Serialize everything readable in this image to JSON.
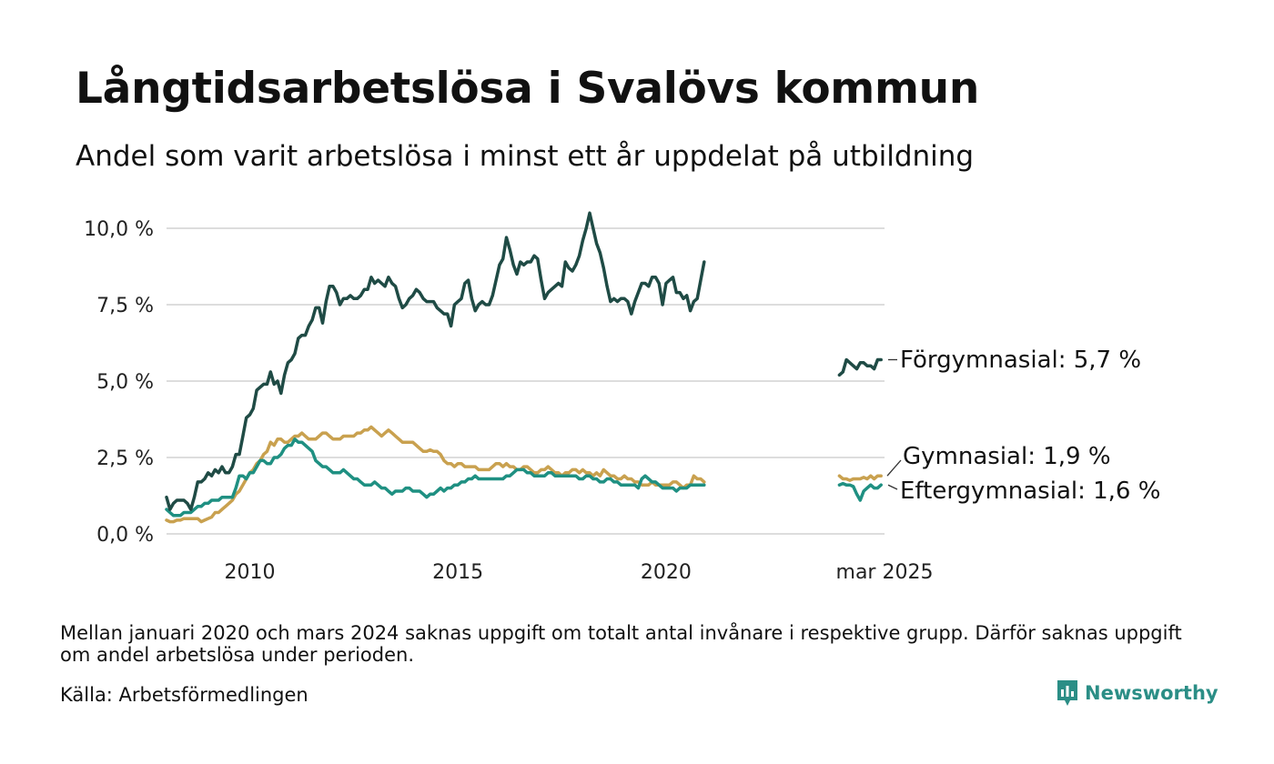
{
  "title": "Långtidsarbetslösa i Svalövs kommun",
  "subtitle": "Andel som varit arbetslösa i minst ett år uppdelat på utbildning",
  "footnote": "Mellan januari 2020 och mars 2024 saknas uppgift om totalt antal invånare i respektive grupp. Därför saknas uppgift om andel arbetslösa under perioden.",
  "source": "Källa: Arbetsförmedlingen",
  "brand": "Newsworthy",
  "colors": {
    "forgymnasial": "#1f4b45",
    "gymnasial": "#c9a14f",
    "eftergymnasial": "#1f9082",
    "grid": "#dddddd",
    "brand": "#2b8e86"
  },
  "chart_data": {
    "type": "line",
    "y_ticks": [
      "0,0 %",
      "2,5 %",
      "5,0 %",
      "7,5 %",
      "10,0 %"
    ],
    "y_tick_values": [
      0,
      2.5,
      5,
      7.5,
      10
    ],
    "ylim": [
      0,
      10.5
    ],
    "x_ticks": [
      "2010",
      "2015",
      "2020",
      "mar 2025"
    ],
    "grid": true,
    "series": [
      {
        "key": "forgymnasial",
        "name": "Förgymnasial",
        "end_label": "Förgymnasial: 5,7 %",
        "segment1": {
          "start": "2008-01",
          "step": "month",
          "values": [
            1.2,
            0.8,
            1.0,
            1.1,
            1.1,
            1.1,
            1.0,
            0.8,
            1.2,
            1.7,
            1.7,
            1.8,
            2.0,
            1.9,
            2.1,
            2.0,
            2.2,
            2.0,
            2.0,
            2.2,
            2.6,
            2.6,
            3.2,
            3.8,
            3.9,
            4.1,
            4.7,
            4.8,
            4.9,
            4.9,
            5.3,
            4.9,
            5.0,
            4.6,
            5.2,
            5.6,
            5.7,
            5.9,
            6.4,
            6.5,
            6.5,
            6.8,
            7.0,
            7.4,
            7.4,
            6.9,
            7.6,
            8.1,
            8.1,
            7.9,
            7.5,
            7.7,
            7.7,
            7.8,
            7.7,
            7.7,
            7.8,
            8.0,
            8.0,
            8.4,
            8.2,
            8.3,
            8.2,
            8.1,
            8.4,
            8.2,
            8.1,
            7.7,
            7.4,
            7.5,
            7.7,
            7.8,
            8.0,
            7.9,
            7.7,
            7.6,
            7.6,
            7.6,
            7.4,
            7.3,
            7.2,
            7.2,
            6.8,
            7.5,
            7.6,
            7.7,
            8.2,
            8.3,
            7.7,
            7.3,
            7.5,
            7.6,
            7.5,
            7.5,
            7.8,
            8.3,
            8.8,
            9.0,
            9.7,
            9.3,
            8.8,
            8.5,
            8.9,
            8.8,
            8.9,
            8.9,
            9.1,
            9.0,
            8.3,
            7.7,
            7.9,
            8.0,
            8.1,
            8.2,
            8.1,
            8.9,
            8.7,
            8.6,
            8.8,
            9.1,
            9.6,
            10.0,
            10.5,
            10.0,
            9.5,
            9.2,
            8.7,
            8.1,
            7.6,
            7.7,
            7.6,
            7.7,
            7.7,
            7.6,
            7.2,
            7.6,
            7.9,
            8.2,
            8.2,
            8.1,
            8.4,
            8.4,
            8.2,
            7.5,
            8.2,
            8.3,
            8.4,
            7.9,
            7.9,
            7.7,
            7.8,
            7.3,
            7.6,
            7.7,
            8.3,
            8.9
          ]
        },
        "segment2": {
          "start": "2024-03",
          "step": "month",
          "values": [
            5.2,
            5.3,
            5.7,
            5.6,
            5.5,
            5.4,
            5.6,
            5.6,
            5.5,
            5.5,
            5.4,
            5.7,
            5.7
          ]
        }
      },
      {
        "key": "gymnasial",
        "name": "Gymnasial",
        "end_label": "Gymnasial: 1,9 %",
        "segment1": {
          "start": "2008-01",
          "step": "month",
          "values": [
            0.45,
            0.4,
            0.4,
            0.45,
            0.45,
            0.5,
            0.5,
            0.5,
            0.5,
            0.5,
            0.4,
            0.45,
            0.5,
            0.55,
            0.7,
            0.7,
            0.8,
            0.9,
            1.0,
            1.1,
            1.3,
            1.4,
            1.6,
            1.8,
            2.0,
            2.1,
            2.3,
            2.4,
            2.6,
            2.7,
            3.0,
            2.9,
            3.1,
            3.1,
            3.0,
            3.0,
            3.1,
            3.2,
            3.2,
            3.3,
            3.2,
            3.1,
            3.1,
            3.1,
            3.2,
            3.3,
            3.3,
            3.2,
            3.1,
            3.1,
            3.1,
            3.2,
            3.2,
            3.2,
            3.2,
            3.3,
            3.3,
            3.4,
            3.4,
            3.5,
            3.4,
            3.3,
            3.2,
            3.3,
            3.4,
            3.3,
            3.2,
            3.1,
            3.0,
            3.0,
            3.0,
            3.0,
            2.9,
            2.8,
            2.7,
            2.7,
            2.75,
            2.7,
            2.7,
            2.6,
            2.4,
            2.3,
            2.3,
            2.2,
            2.3,
            2.3,
            2.2,
            2.2,
            2.2,
            2.2,
            2.1,
            2.1,
            2.1,
            2.1,
            2.2,
            2.3,
            2.3,
            2.2,
            2.3,
            2.2,
            2.2,
            2.1,
            2.1,
            2.2,
            2.2,
            2.1,
            2.0,
            2.0,
            2.1,
            2.1,
            2.2,
            2.1,
            2.0,
            2.0,
            1.9,
            2.0,
            2.0,
            2.1,
            2.1,
            2.0,
            2.1,
            2.0,
            2.0,
            1.9,
            2.0,
            1.9,
            2.1,
            2.0,
            1.9,
            1.9,
            1.8,
            1.8,
            1.9,
            1.8,
            1.8,
            1.7,
            1.7,
            1.6,
            1.6,
            1.6,
            1.7,
            1.6,
            1.6,
            1.6,
            1.6,
            1.6,
            1.7,
            1.7,
            1.6,
            1.5,
            1.6,
            1.6,
            1.9,
            1.8,
            1.8,
            1.7
          ]
        },
        "segment2": {
          "start": "2024-03",
          "step": "month",
          "values": [
            1.9,
            1.8,
            1.8,
            1.75,
            1.8,
            1.8,
            1.8,
            1.85,
            1.8,
            1.9,
            1.8,
            1.9,
            1.9
          ]
        }
      },
      {
        "key": "eftergymnasial",
        "name": "Eftergymnasial",
        "end_label": "Eftergymnasial: 1,6 %",
        "segment1": {
          "start": "2008-01",
          "step": "month",
          "values": [
            0.8,
            0.7,
            0.6,
            0.6,
            0.6,
            0.7,
            0.7,
            0.7,
            0.8,
            0.9,
            0.9,
            1.0,
            1.0,
            1.1,
            1.1,
            1.1,
            1.2,
            1.2,
            1.2,
            1.2,
            1.5,
            1.9,
            1.9,
            1.8,
            2.0,
            2.0,
            2.2,
            2.4,
            2.4,
            2.3,
            2.3,
            2.5,
            2.5,
            2.6,
            2.8,
            2.9,
            2.9,
            3.1,
            3.0,
            3.0,
            2.9,
            2.8,
            2.7,
            2.4,
            2.3,
            2.2,
            2.2,
            2.1,
            2.0,
            2.0,
            2.0,
            2.1,
            2.0,
            1.9,
            1.8,
            1.8,
            1.7,
            1.6,
            1.6,
            1.6,
            1.7,
            1.6,
            1.5,
            1.5,
            1.4,
            1.3,
            1.4,
            1.4,
            1.4,
            1.5,
            1.5,
            1.4,
            1.4,
            1.4,
            1.3,
            1.2,
            1.3,
            1.3,
            1.4,
            1.5,
            1.4,
            1.5,
            1.5,
            1.6,
            1.6,
            1.7,
            1.7,
            1.8,
            1.8,
            1.9,
            1.8,
            1.8,
            1.8,
            1.8,
            1.8,
            1.8,
            1.8,
            1.8,
            1.9,
            1.9,
            2.0,
            2.1,
            2.1,
            2.1,
            2.0,
            2.0,
            1.9,
            1.9,
            1.9,
            1.9,
            2.0,
            2.0,
            1.9,
            1.9,
            1.9,
            1.9,
            1.9,
            1.9,
            1.9,
            1.8,
            1.8,
            1.9,
            1.9,
            1.8,
            1.8,
            1.7,
            1.7,
            1.8,
            1.8,
            1.7,
            1.7,
            1.6,
            1.6,
            1.6,
            1.6,
            1.6,
            1.5,
            1.8,
            1.9,
            1.8,
            1.7,
            1.7,
            1.6,
            1.5,
            1.5,
            1.5,
            1.5,
            1.4,
            1.5,
            1.5,
            1.5,
            1.6,
            1.6,
            1.6,
            1.6,
            1.6
          ]
        },
        "segment2": {
          "start": "2024-03",
          "step": "month",
          "values": [
            1.6,
            1.65,
            1.6,
            1.6,
            1.55,
            1.3,
            1.1,
            1.4,
            1.5,
            1.6,
            1.5,
            1.5,
            1.6
          ]
        }
      }
    ]
  }
}
